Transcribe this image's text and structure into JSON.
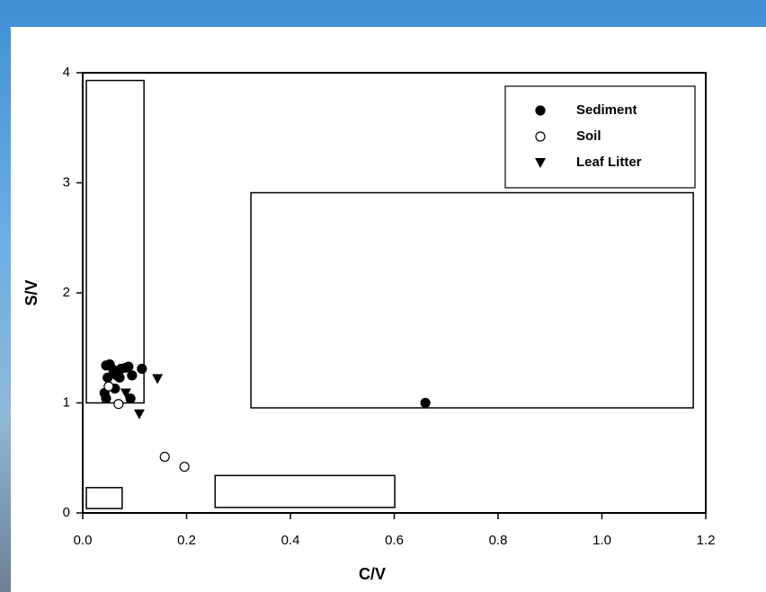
{
  "chart_data": {
    "type": "scatter",
    "x_label": "C/V",
    "y_label": "S/V",
    "xlim": [
      0,
      1.2
    ],
    "ylim": [
      0,
      4
    ],
    "xticks": [
      {
        "value": 0,
        "label": "0.0"
      },
      {
        "value": 0.2,
        "label": "0.2"
      },
      {
        "value": 0.4,
        "label": "0.4"
      },
      {
        "value": 0.6,
        "label": "0.6"
      },
      {
        "value": 0.8,
        "label": "0.8"
      },
      {
        "value": 1.0,
        "label": "1.0"
      },
      {
        "value": 1.2,
        "label": "1.2"
      }
    ],
    "yticks": [
      0,
      1,
      2,
      3,
      4
    ],
    "legend": "upper right",
    "series": [
      {
        "name": "Sediment",
        "marker": "filled-circle",
        "color": "#000000",
        "x": [
          0.66,
          0.045,
          0.052,
          0.059,
          0.048,
          0.066,
          0.074,
          0.083,
          0.088,
          0.095,
          0.114,
          0.042,
          0.045,
          0.062,
          0.092,
          0.071
        ],
        "values": [
          1.0,
          1.34,
          1.35,
          1.3,
          1.23,
          1.25,
          1.31,
          1.32,
          1.33,
          1.25,
          1.31,
          1.09,
          1.04,
          1.13,
          1.04,
          1.23
        ]
      },
      {
        "name": "Soil",
        "marker": "open-circle",
        "color": "#000000",
        "x": [
          0.05,
          0.069,
          0.158,
          0.196
        ],
        "values": [
          1.15,
          0.99,
          0.51,
          0.42
        ]
      },
      {
        "name": "Leaf Litter",
        "marker": "triangle-down",
        "color": "#000000",
        "x": [
          0.144,
          0.109,
          0.083
        ],
        "values": [
          1.22,
          0.9,
          1.09
        ]
      }
    ],
    "regions": [
      {
        "xlim": [
          0.007,
          0.118
        ],
        "ylim": [
          1.0,
          3.93
        ]
      },
      {
        "xlim": [
          0.324,
          1.176
        ],
        "ylim": [
          0.955,
          2.91
        ]
      },
      {
        "xlim": [
          0.007,
          0.076
        ],
        "ylim": [
          0.04,
          0.23
        ]
      },
      {
        "xlim": [
          0.255,
          0.601
        ],
        "ylim": [
          0.05,
          0.34
        ]
      }
    ]
  }
}
